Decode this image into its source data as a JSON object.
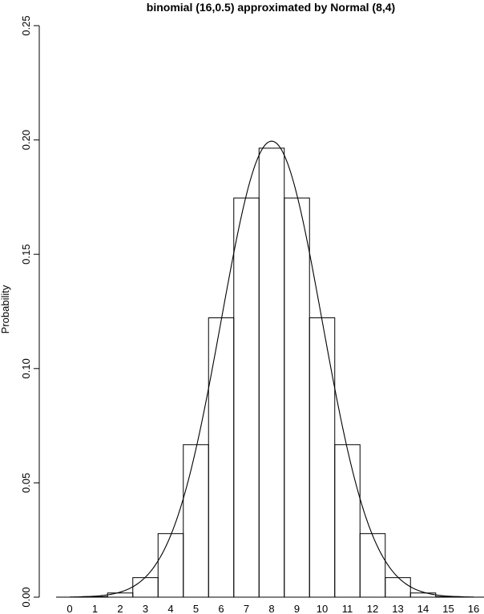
{
  "chart_data": {
    "type": "bar",
    "title": "binomial (16,0.5) approximated by Normal (8,4)",
    "xlabel": "",
    "ylabel": "Probability",
    "categories": [
      "0",
      "1",
      "2",
      "3",
      "4",
      "5",
      "6",
      "7",
      "8",
      "9",
      "10",
      "11",
      "12",
      "13",
      "14",
      "15",
      "16"
    ],
    "series": [
      {
        "values": [
          1.53e-05,
          0.000244,
          0.00183,
          0.00854,
          0.0278,
          0.0667,
          0.1222,
          0.1746,
          0.1964,
          0.1746,
          0.1222,
          0.0667,
          0.0278,
          0.00854,
          0.00183,
          0.000244,
          1.53e-05
        ]
      }
    ],
    "overlay_curve": {
      "type": "normal_density",
      "mean": 8,
      "variance": 4
    },
    "ylim": [
      0,
      0.25
    ],
    "yticks": [
      "0.00",
      "0.05",
      "0.10",
      "0.15",
      "0.20",
      "0.25"
    ],
    "grid": false,
    "legend": "none"
  }
}
